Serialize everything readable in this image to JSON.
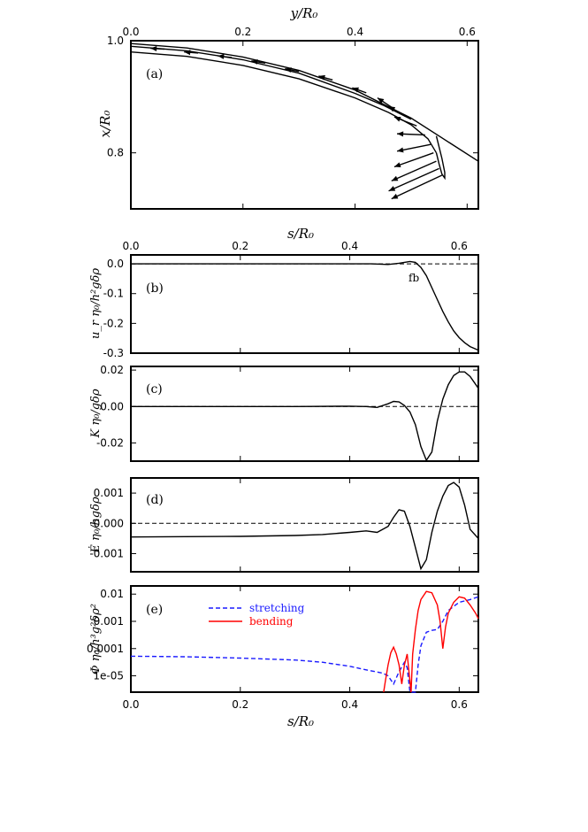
{
  "chart_data": [
    {
      "panel": "(a)",
      "type": "line",
      "xlabel": "y/R₀",
      "ylabel": "x/R₀",
      "xlim": [
        0,
        0.62
      ],
      "ylim": [
        0.7,
        1.0
      ],
      "x_ticks": [
        "0.0",
        "0.2",
        "0.4",
        "0.6"
      ],
      "y_ticks": [
        "0.8",
        "1.0"
      ],
      "series": [
        {
          "role": "outer-boundary",
          "x": [
            0,
            0.1,
            0.2,
            0.3,
            0.4,
            0.5,
            0.55,
            0.62
          ],
          "y": [
            0.995,
            0.987,
            0.971,
            0.947,
            0.912,
            0.862,
            0.83,
            0.785
          ]
        },
        {
          "role": "inner-boundary",
          "x": [
            0,
            0.1,
            0.2,
            0.3,
            0.4,
            0.46,
            0.5,
            0.53,
            0.545
          ],
          "y": [
            0.98,
            0.972,
            0.956,
            0.932,
            0.898,
            0.872,
            0.85,
            0.825,
            0.8
          ]
        },
        {
          "role": "middle-line",
          "x": [
            0,
            0.1,
            0.2,
            0.3,
            0.4,
            0.45,
            0.5
          ],
          "y": [
            0.99,
            0.982,
            0.966,
            0.942,
            0.906,
            0.885,
            0.86
          ]
        },
        {
          "role": "tip-loop",
          "x": [
            0.545,
            0.55,
            0.555,
            0.56,
            0.56,
            0.555,
            0.545
          ],
          "y": [
            0.8,
            0.78,
            0.762,
            0.755,
            0.765,
            0.79,
            0.83
          ]
        }
      ],
      "arrows": [
        {
          "x": 0.06,
          "y": 0.985,
          "dx": -0.025,
          "dy": 0.0015
        },
        {
          "x": 0.12,
          "y": 0.978,
          "dx": -0.025,
          "dy": 0.002
        },
        {
          "x": 0.18,
          "y": 0.97,
          "dx": -0.025,
          "dy": 0.003
        },
        {
          "x": 0.24,
          "y": 0.96,
          "dx": -0.025,
          "dy": 0.004
        },
        {
          "x": 0.3,
          "y": 0.945,
          "dx": -0.025,
          "dy": 0.005
        },
        {
          "x": 0.36,
          "y": 0.93,
          "dx": -0.025,
          "dy": 0.007
        },
        {
          "x": 0.42,
          "y": 0.907,
          "dx": -0.025,
          "dy": 0.009
        },
        {
          "x": 0.47,
          "y": 0.878,
          "dx": -0.03,
          "dy": 0.02
        },
        {
          "x": 0.49,
          "y": 0.865,
          "dx": -0.03,
          "dy": 0.018
        },
        {
          "x": 0.51,
          "y": 0.848,
          "dx": -0.04,
          "dy": 0.016
        },
        {
          "x": 0.525,
          "y": 0.832,
          "dx": -0.05,
          "dy": 0.002
        },
        {
          "x": 0.535,
          "y": 0.815,
          "dx": -0.06,
          "dy": -0.012
        },
        {
          "x": 0.54,
          "y": 0.8,
          "dx": -0.07,
          "dy": -0.025
        },
        {
          "x": 0.545,
          "y": 0.785,
          "dx": -0.08,
          "dy": -0.035
        },
        {
          "x": 0.55,
          "y": 0.772,
          "dx": -0.09,
          "dy": -0.04
        },
        {
          "x": 0.555,
          "y": 0.76,
          "dx": -0.09,
          "dy": -0.042
        }
      ]
    },
    {
      "panel": "(b)",
      "type": "line",
      "xlabel": "s/R₀",
      "ylabel": "u_r η₀/h²gδρ",
      "xlim": [
        0,
        0.635
      ],
      "ylim": [
        -0.3,
        0.03
      ],
      "x_ticks": [
        "0.0",
        "0.2",
        "0.4",
        "0.6"
      ],
      "y_ticks": [
        "0.0",
        "-0.1",
        "-0.2",
        "-0.3"
      ],
      "annotation": "fb",
      "x": [
        0,
        0.1,
        0.2,
        0.3,
        0.4,
        0.44,
        0.47,
        0.49,
        0.5,
        0.51,
        0.52,
        0.53,
        0.54,
        0.55,
        0.56,
        0.57,
        0.58,
        0.59,
        0.6,
        0.61,
        0.62,
        0.635
      ],
      "y": [
        0,
        0,
        0,
        0,
        0,
        0,
        -0.002,
        0.002,
        0.005,
        0.008,
        0.005,
        -0.012,
        -0.04,
        -0.08,
        -0.12,
        -0.16,
        -0.195,
        -0.225,
        -0.248,
        -0.265,
        -0.278,
        -0.29
      ]
    },
    {
      "panel": "(c)",
      "type": "line",
      "xlabel": "",
      "ylabel": "K η₀/gδρ",
      "xlim": [
        0,
        0.635
      ],
      "ylim": [
        -0.03,
        0.022
      ],
      "y_ticks": [
        "0.02",
        "0.00",
        "-0.02"
      ],
      "x": [
        0,
        0.1,
        0.2,
        0.3,
        0.4,
        0.43,
        0.45,
        0.47,
        0.48,
        0.49,
        0.5,
        0.51,
        0.52,
        0.53,
        0.54,
        0.55,
        0.56,
        0.57,
        0.58,
        0.59,
        0.6,
        0.61,
        0.62,
        0.635
      ],
      "y": [
        0,
        0,
        0,
        0,
        0.0002,
        0,
        -0.0005,
        0.0015,
        0.0028,
        0.0025,
        0.0005,
        -0.003,
        -0.01,
        -0.022,
        -0.0295,
        -0.025,
        -0.008,
        0.004,
        0.012,
        0.017,
        0.019,
        0.019,
        0.0165,
        0.01
      ]
    },
    {
      "panel": "(d)",
      "type": "line",
      "xlabel": "",
      "ylabel": "Ė η₀/hgδρ",
      "xlim": [
        0,
        0.635
      ],
      "ylim": [
        -0.0016,
        0.0015
      ],
      "y_ticks": [
        "0.001",
        "0.000",
        "-0.001"
      ],
      "x": [
        0,
        0.1,
        0.2,
        0.3,
        0.35,
        0.4,
        0.43,
        0.45,
        0.47,
        0.48,
        0.49,
        0.5,
        0.51,
        0.52,
        0.53,
        0.54,
        0.55,
        0.56,
        0.57,
        0.58,
        0.59,
        0.6,
        0.61,
        0.62,
        0.635
      ],
      "y": [
        -0.00045,
        -0.00044,
        -0.00043,
        -0.0004,
        -0.00037,
        -0.0003,
        -0.00025,
        -0.0003,
        -0.0001,
        0.0002,
        0.00045,
        0.0004,
        -0.0001,
        -0.0008,
        -0.0015,
        -0.0012,
        -0.0003,
        0.0004,
        0.0009,
        0.00125,
        0.00135,
        0.0012,
        0.0006,
        -0.0002,
        -0.0005
      ]
    },
    {
      "panel": "(e)",
      "type": "line",
      "xlabel": "s/R₀",
      "ylabel": "Φ η₀/h³g²δρ²",
      "xlim": [
        0,
        0.635
      ],
      "ylim_log10": [
        -5.6,
        -1.7
      ],
      "y_scale": "log",
      "x_ticks": [
        "0.0",
        "0.2",
        "0.4",
        "0.6"
      ],
      "y_ticks": [
        "0.01",
        "0.001",
        "0.0001",
        "1e-05"
      ],
      "legend": {
        "placement": "top-left",
        "entries": [
          "stretching",
          "bending"
        ]
      },
      "series": [
        {
          "name": "stretching",
          "color": "#1a1aff",
          "style": "dashed",
          "x": [
            0,
            0.1,
            0.2,
            0.3,
            0.35,
            0.4,
            0.43,
            0.46,
            0.47,
            0.48,
            0.49,
            0.5,
            0.505,
            0.51,
            0.515,
            0.52,
            0.525,
            0.53,
            0.54,
            0.55,
            0.56,
            0.57,
            0.58,
            0.6,
            0.62,
            0.635
          ],
          "log10y": [
            -4.28,
            -4.3,
            -4.35,
            -4.42,
            -4.5,
            -4.65,
            -4.78,
            -4.9,
            -5.0,
            -5.3,
            -4.85,
            -4.5,
            -4.7,
            -5.8,
            -5.8,
            -5.8,
            -4.6,
            -3.9,
            -3.4,
            -3.33,
            -3.3,
            -3.0,
            -2.6,
            -2.3,
            -2.2,
            -2.1
          ]
        },
        {
          "name": "bending",
          "color": "#ff0000",
          "style": "solid",
          "x": [
            0.462,
            0.465,
            0.47,
            0.475,
            0.48,
            0.485,
            0.49,
            0.495,
            0.5,
            0.505,
            0.512,
            0.515,
            0.52,
            0.525,
            0.53,
            0.54,
            0.55,
            0.56,
            0.565,
            0.57,
            0.575,
            0.58,
            0.59,
            0.6,
            0.61,
            0.62,
            0.63,
            0.635
          ],
          "log10y": [
            -5.6,
            -5.2,
            -4.6,
            -4.15,
            -3.95,
            -4.2,
            -4.6,
            -5.3,
            -4.6,
            -4.2,
            -5.8,
            -4.2,
            -3.3,
            -2.6,
            -2.2,
            -1.9,
            -1.95,
            -2.4,
            -3.0,
            -4.0,
            -3.2,
            -2.7,
            -2.3,
            -2.1,
            -2.15,
            -2.4,
            -2.7,
            -2.9
          ]
        }
      ]
    }
  ]
}
